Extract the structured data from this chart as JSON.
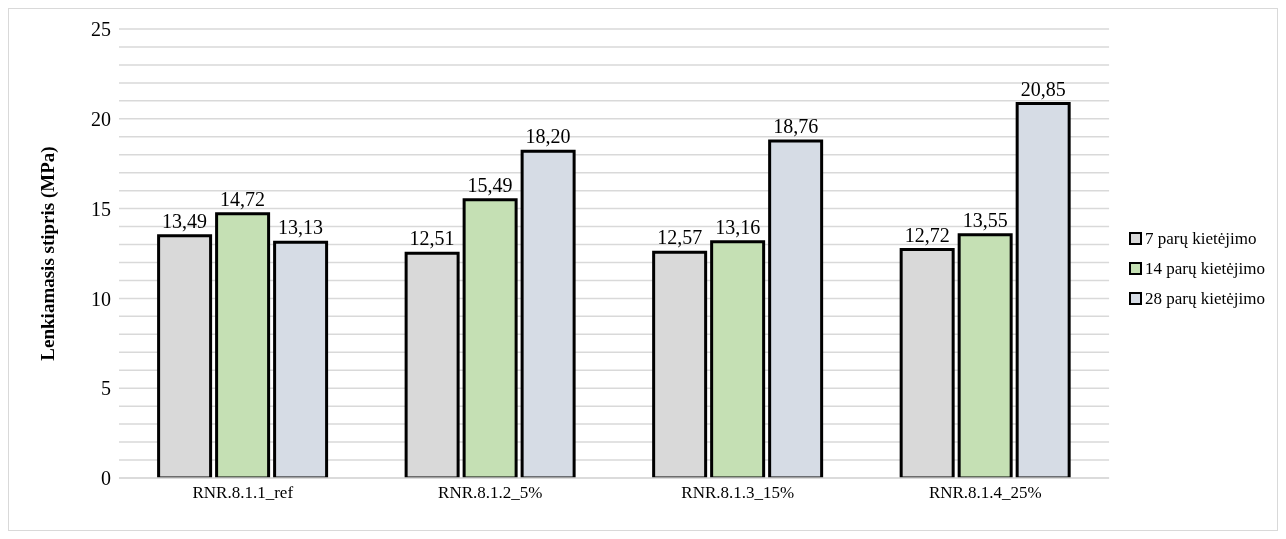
{
  "chart_data": {
    "type": "bar",
    "ylabel": "Lenkiamasis stipris (MPa)",
    "categories": [
      "RNR.8.1.1_ref",
      "RNR.8.1.2_5%",
      "RNR.8.1.3_15%",
      "RNR.8.1.4_25%"
    ],
    "series": [
      {
        "name": "7 parų kietėjimo",
        "color": "#d9d9d9",
        "values": [
          13.49,
          12.51,
          12.57,
          12.72
        ],
        "value_labels": [
          "13,49",
          "12,51",
          "12,57",
          "12,72"
        ]
      },
      {
        "name": "14 parų kietėjimo",
        "color": "#c5e0b4",
        "values": [
          14.72,
          15.49,
          13.16,
          13.55
        ],
        "value_labels": [
          "14,72",
          "15,49",
          "13,16",
          "13,55"
        ]
      },
      {
        "name": "28 parų kietėjimo",
        "color": "#d6dce5",
        "values": [
          13.13,
          18.2,
          18.76,
          20.85
        ],
        "value_labels": [
          "13,13",
          "18,20",
          "18,76",
          "20,85"
        ]
      }
    ],
    "ylim": [
      0,
      25
    ],
    "yticks": [
      0,
      {
        "value": 1,
        "label": null
      },
      {
        "value": 2,
        "label": null
      },
      {
        "value": 3,
        "label": null
      },
      {
        "value": 4,
        "label": null
      },
      5,
      {
        "value": 6,
        "label": null
      },
      {
        "value": 7,
        "label": null
      },
      {
        "value": 8,
        "label": null
      },
      {
        "value": 9,
        "label": null
      },
      10,
      {
        "value": 11,
        "label": null
      },
      {
        "value": 12,
        "label": null
      },
      {
        "value": 13,
        "label": null
      },
      {
        "value": 14,
        "label": null
      },
      15,
      {
        "value": 16,
        "label": null
      },
      {
        "value": 17,
        "label": null
      },
      {
        "value": 18,
        "label": null
      },
      {
        "value": 19,
        "label": null
      },
      20,
      {
        "value": 21,
        "label": null
      },
      {
        "value": 22,
        "label": null
      },
      {
        "value": 23,
        "label": null
      },
      {
        "value": 24,
        "label": null
      },
      25
    ],
    "grid": "y",
    "legend": "right"
  }
}
